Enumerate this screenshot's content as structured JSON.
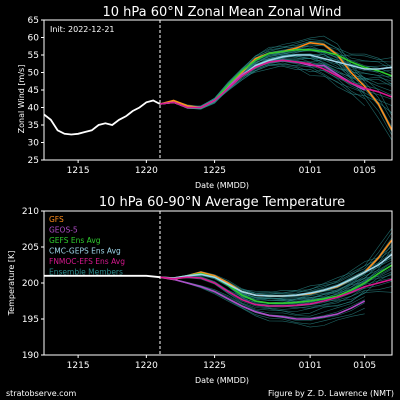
{
  "footer": {
    "source": "stratobserve.com",
    "credit": "Figure by Z. D. Lawrence (NMT)"
  },
  "colors": {
    "background": "#000000",
    "axes": "#ffffff",
    "GFS": "#ff8c1a",
    "GEOS-5": "#b04dc8",
    "GEFS Ens Avg": "#2ecc2e",
    "CMC-GEPS Ens Avg": "#9fd6ea",
    "FNMOC-EFS Ens Avg": "#d8188f",
    "Ensemble Members": "#2a8a8a"
  },
  "chart_data": [
    {
      "type": "line",
      "title": "10 hPa  60°N  Zonal Mean Zonal Wind",
      "annotation": "Init: 2022-12-21",
      "xlabel": "Date (MMDD)",
      "ylabel": "Zonal  Wind  [m/s]",
      "xticks": [
        {
          "day": 3,
          "label": "1215"
        },
        {
          "day": 8,
          "label": "1220"
        },
        {
          "day": 13,
          "label": "1225"
        },
        {
          "day": 20,
          "label": "0101"
        },
        {
          "day": 24,
          "label": "0105"
        }
      ],
      "xlim": [
        0.5,
        26
      ],
      "ylim": [
        25,
        65
      ],
      "yticks": [
        25,
        30,
        35,
        40,
        45,
        50,
        55,
        60,
        65
      ],
      "init_day": 9,
      "grid": false,
      "analysis": {
        "name": "Analysis",
        "x": [
          0.5,
          1,
          1.5,
          2,
          2.5,
          3,
          3.5,
          4,
          4.5,
          5,
          5.5,
          6,
          6.5,
          7,
          7.5,
          8,
          8.5,
          9
        ],
        "y": [
          38,
          36.5,
          33.5,
          32.5,
          32.3,
          32.5,
          33,
          33.5,
          35,
          35.5,
          35,
          36.5,
          37.5,
          39,
          40,
          41.5,
          42,
          41
        ]
      },
      "series": [
        {
          "name": "GFS",
          "x": [
            9,
            10,
            11,
            12,
            13,
            14,
            15,
            16,
            17,
            18,
            19,
            20,
            21,
            22,
            23,
            24,
            25,
            26
          ],
          "y": [
            41,
            42,
            40.5,
            40,
            42,
            46,
            50,
            54,
            55.5,
            56,
            57,
            58.5,
            58,
            55,
            50,
            46,
            41,
            33.5
          ]
        },
        {
          "name": "GEOS-5",
          "x": [
            9,
            10,
            11,
            12,
            13,
            14,
            15,
            16,
            17,
            18,
            19,
            20,
            21,
            22,
            23,
            24
          ],
          "y": [
            41,
            41.5,
            40,
            40,
            42,
            46,
            49.5,
            51.5,
            53,
            53.5,
            53,
            52,
            52,
            49.5,
            47,
            45
          ]
        },
        {
          "name": "GEFS Ens Avg",
          "x": [
            9,
            10,
            11,
            12,
            13,
            14,
            15,
            16,
            17,
            18,
            19,
            20,
            21,
            22,
            23,
            24,
            25,
            26
          ],
          "y": [
            41,
            41.5,
            40,
            40,
            42,
            46.5,
            50.5,
            53.5,
            55.5,
            56,
            56.5,
            56.5,
            56,
            55,
            53,
            51.5,
            50.5,
            49
          ]
        },
        {
          "name": "CMC-GEPS Ens Avg",
          "x": [
            9,
            10,
            11,
            12,
            13,
            14,
            15,
            16,
            17,
            18,
            19,
            20,
            21,
            22,
            23,
            24,
            25,
            26
          ],
          "y": [
            41,
            41.5,
            40,
            40,
            42,
            45.5,
            49,
            52,
            53.5,
            54.5,
            55,
            55,
            54,
            53,
            52,
            51,
            51,
            51.5
          ]
        },
        {
          "name": "FNMOC-EFS Ens Avg",
          "x": [
            9,
            10,
            11,
            12,
            13,
            14,
            15,
            16,
            17,
            18,
            19,
            20,
            21,
            22,
            23,
            24,
            25,
            26
          ],
          "y": [
            41,
            41.5,
            40,
            40,
            42,
            45.5,
            49,
            51.5,
            53,
            53.5,
            53,
            52.5,
            51,
            49,
            47,
            45.5,
            44.5,
            43
          ]
        }
      ]
    },
    {
      "type": "line",
      "title": "10 hPa  60-90°N Average Temperature",
      "xlabel": "Date (MMDD)",
      "ylabel": "Temperature  [K]",
      "xticks": [
        {
          "day": 3,
          "label": "1215"
        },
        {
          "day": 8,
          "label": "1220"
        },
        {
          "day": 13,
          "label": "1225"
        },
        {
          "day": 20,
          "label": "0101"
        },
        {
          "day": 24,
          "label": "0105"
        }
      ],
      "xlim": [
        0.5,
        26
      ],
      "ylim": [
        190,
        210
      ],
      "yticks": [
        190,
        195,
        200,
        205,
        210
      ],
      "init_day": 9,
      "grid": false,
      "legend": {
        "placement": "top-left",
        "entries": [
          "GFS",
          "GEOS-5",
          "GEFS Ens Avg",
          "CMC-GEPS Ens Avg",
          "FNMOC-EFS Ens Avg",
          "Ensemble Members"
        ]
      },
      "analysis": {
        "name": "Analysis",
        "x": [
          0.5,
          2,
          4,
          6,
          8,
          9
        ],
        "y": [
          201,
          201,
          201,
          201,
          201,
          200.8
        ]
      },
      "series": [
        {
          "name": "GFS",
          "x": [
            9,
            10,
            11,
            12,
            13,
            14,
            15,
            16,
            17,
            18,
            19,
            20,
            21,
            22,
            23,
            24,
            25,
            26
          ],
          "y": [
            200.8,
            200.5,
            201,
            201.5,
            201,
            200,
            198.8,
            198.3,
            198.2,
            198.2,
            198.3,
            198.5,
            199,
            199.5,
            200.5,
            201.5,
            203.5,
            206
          ]
        },
        {
          "name": "GEOS-5",
          "x": [
            9,
            10,
            11,
            12,
            13,
            14,
            15,
            16,
            17,
            18,
            19,
            20,
            21,
            22,
            23,
            24
          ],
          "y": [
            200.8,
            200.5,
            200,
            199.5,
            198.8,
            197.8,
            196.8,
            196,
            195.5,
            195.3,
            195,
            195,
            195.3,
            195.7,
            196.5,
            197.5
          ]
        },
        {
          "name": "GEFS Ens Avg",
          "x": [
            9,
            10,
            11,
            12,
            13,
            14,
            15,
            16,
            17,
            18,
            19,
            20,
            21,
            22,
            23,
            24,
            25,
            26
          ],
          "y": [
            200.8,
            200.7,
            201,
            201.3,
            200.8,
            199.7,
            198.3,
            197.5,
            197.2,
            197.2,
            197.3,
            197.5,
            197.8,
            198.2,
            199,
            200,
            201.3,
            202.5
          ]
        },
        {
          "name": "CMC-GEPS Ens Avg",
          "x": [
            9,
            10,
            11,
            12,
            13,
            14,
            15,
            16,
            17,
            18,
            19,
            20,
            21,
            22,
            23,
            24,
            25,
            26
          ],
          "y": [
            200.8,
            200.7,
            201,
            201.2,
            200.8,
            199.8,
            198.8,
            198.3,
            198.2,
            198.2,
            198.3,
            198.6,
            199,
            199.6,
            200.5,
            201.5,
            202.5,
            204
          ]
        },
        {
          "name": "FNMOC-EFS Ens Avg",
          "x": [
            9,
            10,
            11,
            12,
            13,
            14,
            15,
            16,
            17,
            18,
            19,
            20,
            21,
            22,
            23,
            24,
            25,
            26
          ],
          "y": [
            200.8,
            200.6,
            200.8,
            200.7,
            200,
            198.8,
            197.7,
            197,
            196.8,
            196.8,
            196.9,
            197.1,
            197.5,
            198,
            198.7,
            199.5,
            200,
            200.5
          ]
        }
      ]
    }
  ]
}
